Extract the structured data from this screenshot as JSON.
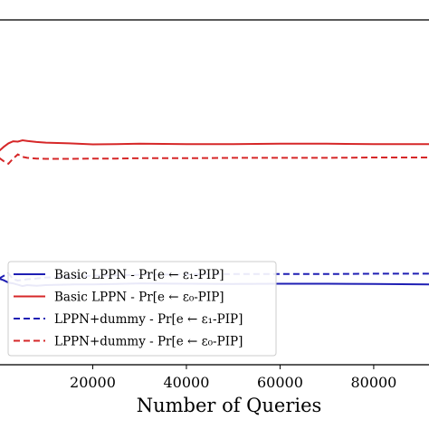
{
  "chart_data": {
    "type": "line",
    "title": "",
    "xlabel": "Number of Queries",
    "ylabel": "",
    "xlim": [
      0,
      92000
    ],
    "ylim": [
      0,
      1
    ],
    "x_ticks": [
      20000,
      40000,
      60000,
      80000
    ],
    "x_tick_labels": [
      "20000",
      "40000",
      "60000",
      "80000"
    ],
    "grid": false,
    "legend_location": "lower-left",
    "series": [
      {
        "name": "Basic LPPN - Pr[e ← ε₁-PIP]",
        "color": "#1f1fb4",
        "style": "solid",
        "x": [
          0,
          1000,
          2000,
          3000,
          4000,
          5000,
          6000,
          8000,
          10000,
          13000,
          16000,
          20000,
          25000,
          30000,
          40000,
          50000,
          60000,
          70000,
          80000,
          92000
        ],
        "y": [
          0.25,
          0.245,
          0.238,
          0.236,
          0.232,
          0.228,
          0.231,
          0.229,
          0.231,
          0.232,
          0.233,
          0.233,
          0.234,
          0.236,
          0.235,
          0.234,
          0.235,
          0.235,
          0.234,
          0.233
        ]
      },
      {
        "name": "Basic LPPN - Pr[e ← ε₀-PIP]",
        "color": "#d62728",
        "style": "solid",
        "x": [
          0,
          1000,
          2000,
          3000,
          4000,
          5000,
          6000,
          8000,
          10000,
          15000,
          20000,
          25000,
          30000,
          40000,
          50000,
          60000,
          70000,
          80000,
          92000
        ],
        "y": [
          0.62,
          0.632,
          0.642,
          0.648,
          0.647,
          0.651,
          0.649,
          0.646,
          0.644,
          0.642,
          0.639,
          0.64,
          0.641,
          0.64,
          0.64,
          0.641,
          0.641,
          0.64,
          0.64
        ]
      },
      {
        "name": "LPPN+dummy - Pr[e ← ε₁-PIP]",
        "color": "#1f1fb4",
        "style": "dashed",
        "x": [
          0,
          1000,
          2000,
          3000,
          4000,
          5000,
          6000,
          8000,
          10000,
          15000,
          20000,
          25000,
          30000,
          40000,
          50000,
          60000,
          70000,
          80000,
          92000
        ],
        "y": [
          0.25,
          0.258,
          0.265,
          0.248,
          0.244,
          0.246,
          0.248,
          0.25,
          0.253,
          0.255,
          0.258,
          0.259,
          0.261,
          0.262,
          0.263,
          0.263,
          0.263,
          0.264,
          0.264
        ]
      },
      {
        "name": "LPPN+dummy - Pr[e ← ε₀-PIP]",
        "color": "#d62728",
        "style": "dashed",
        "x": [
          0,
          1000,
          2000,
          3000,
          4000,
          5000,
          6000,
          8000,
          10000,
          15000,
          20000,
          25000,
          30000,
          40000,
          50000,
          60000,
          70000,
          80000,
          92000
        ],
        "y": [
          0.6,
          0.59,
          0.583,
          0.598,
          0.61,
          0.603,
          0.6,
          0.598,
          0.597,
          0.597,
          0.598,
          0.598,
          0.599,
          0.599,
          0.6,
          0.6,
          0.6,
          0.601,
          0.601
        ]
      }
    ]
  }
}
